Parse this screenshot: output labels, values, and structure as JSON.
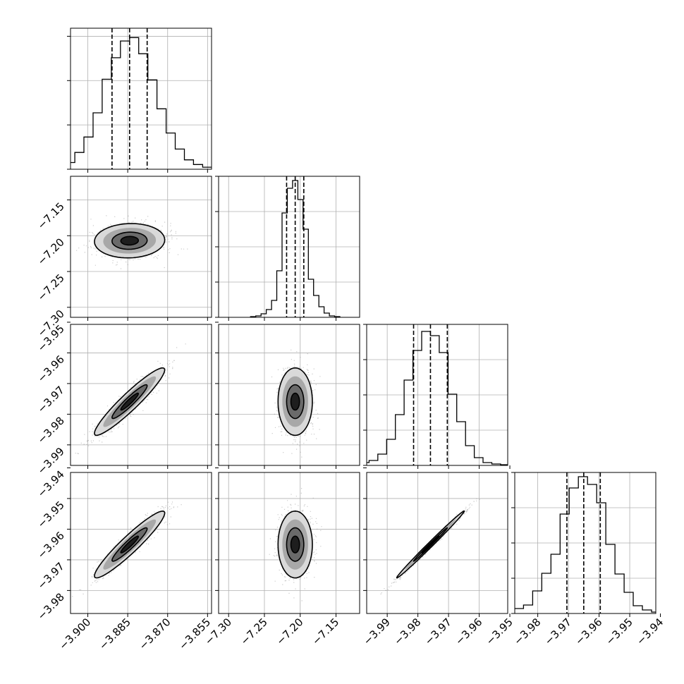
{
  "chart_data": {
    "type": "corner",
    "parameters": [
      {
        "range": [
          -3.9065,
          -3.8535
        ],
        "ticks": [
          -3.9,
          -3.885,
          -3.87,
          -3.855
        ],
        "tick_labels": [
          "−3.900",
          "−3.885",
          "−3.870",
          "−3.855"
        ],
        "median": -3.8843,
        "quantiles_16_84": [
          -3.8909,
          -3.8777
        ],
        "hist_counts": [
          1,
          2,
          5,
          10,
          25,
          48,
          84,
          134,
          166,
          191,
          196,
          172,
          133,
          90,
          54,
          30,
          14,
          7,
          3,
          1
        ]
      },
      {
        "range": [
          -7.314,
          -7.117
        ],
        "ticks": [
          -7.3,
          -7.25,
          -7.2,
          -7.15
        ],
        "tick_labels": [
          "−7.30",
          "−7.25",
          "−7.20",
          "−7.15"
        ],
        "median": -7.207,
        "quantiles_16_84": [
          -7.219,
          -7.195
        ],
        "hist_counts": [
          1,
          2,
          5,
          11,
          24,
          66,
          148,
          183,
          194,
          167,
          125,
          54,
          31,
          15,
          6,
          2,
          1
        ]
      },
      {
        "range": [
          -3.9967,
          -3.9507
        ],
        "ticks": [
          -3.99,
          -3.98,
          -3.97,
          -3.96,
          -3.95
        ],
        "tick_labels": [
          "−3.99",
          "−3.98",
          "−3.97",
          "−3.96",
          "−3.95"
        ],
        "median": -3.9759,
        "quantiles_16_84": [
          -3.9814,
          -3.9704
        ],
        "hist_counts": [
          1,
          2,
          4,
          7,
          16,
          37,
          72,
          121,
          163,
          190,
          184,
          160,
          101,
          62,
          28,
          11,
          4,
          2,
          1,
          1
        ]
      },
      {
        "range": [
          -3.9875,
          -3.9415
        ],
        "ticks": [
          -3.98,
          -3.97,
          -3.96,
          -3.95,
          -3.94
        ],
        "tick_labels": [
          "−3.98",
          "−3.97",
          "−3.96",
          "−3.95",
          "−3.94"
        ],
        "median": -3.965,
        "quantiles_16_84": [
          -3.9705,
          -3.9596
        ],
        "hist_counts": [
          1,
          3,
          7,
          12,
          32,
          57,
          84,
          141,
          178,
          194,
          183,
          157,
          98,
          56,
          30,
          11,
          5,
          2,
          1
        ]
      }
    ],
    "hist_ylims": [
      210,
      200,
      200,
      200
    ],
    "hist_yticks": [
      [
        0,
        66,
        132,
        198
      ],
      [
        0,
        50,
        100,
        150,
        200
      ],
      [
        0,
        50,
        100,
        150,
        200
      ],
      [
        0,
        50,
        100,
        150,
        200
      ]
    ],
    "correlations": [
      {
        "row": 1,
        "col": 0,
        "rho": 0.05
      },
      {
        "row": 2,
        "col": 0,
        "rho": 0.94
      },
      {
        "row": 2,
        "col": 1,
        "rho": 0.0
      },
      {
        "row": 3,
        "col": 0,
        "rho": 0.94
      },
      {
        "row": 3,
        "col": 1,
        "rho": 0.0
      },
      {
        "row": 3,
        "col": 2,
        "rho": 0.995
      }
    ],
    "grid": true,
    "quantiles_shown": [
      0.16,
      0.5,
      0.84
    ]
  }
}
